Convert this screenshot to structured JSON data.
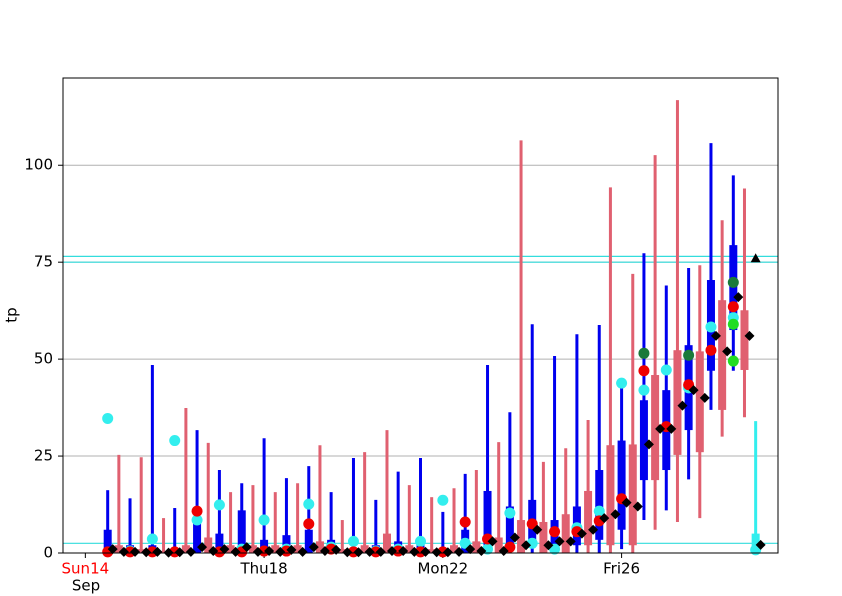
{
  "chart_data": {
    "type": "boxplot",
    "y_label": "tp",
    "x_sublabel": "Sep",
    "first_tick_color": "#ff0000",
    "xlim": [
      13.5,
      29.5
    ],
    "ylim": [
      0,
      122.5
    ],
    "xticks": [
      {
        "value": 14,
        "label": "Sun14"
      },
      {
        "value": 18,
        "label": "Thu18"
      },
      {
        "value": 22,
        "label": "Mon22"
      },
      {
        "value": 26,
        "label": "Fri26"
      }
    ],
    "yticks": [
      0,
      25,
      50,
      75,
      100
    ],
    "grid": true,
    "reference_lines": [
      {
        "value": 76.5,
        "color": "#33dddd"
      },
      {
        "value": 75,
        "color": "#33dddd"
      },
      {
        "value": 2.5,
        "color": "#33dddd"
      }
    ],
    "box_series": [
      {
        "color": "#0000ee",
        "x": [
          14.5,
          15,
          15.5,
          16,
          16.5,
          17,
          17.5,
          18,
          18.5,
          19,
          19.5,
          20,
          20.5,
          21,
          21.5,
          22,
          22.5,
          23,
          23.5,
          24,
          24.5,
          25,
          25.5,
          26,
          26.5,
          27,
          27.5,
          28,
          28.5
        ],
        "max": [
          16.2,
          14.1,
          48.5,
          11.6,
          31.7,
          21.4,
          18,
          29.6,
          19.3,
          22.4,
          15.7,
          24.5,
          13.7,
          21,
          24.5,
          10.6,
          20.4,
          48.5,
          36.3,
          59,
          50.8,
          56.4,
          58.8,
          43.6,
          77.3,
          69,
          73.5,
          105.7,
          97.4
        ],
        "q3": [
          6,
          2,
          2,
          1,
          8.5,
          5,
          11,
          3.4,
          4.6,
          6,
          3.4,
          1,
          2,
          3,
          2,
          1,
          6,
          16,
          12,
          13.7,
          8.5,
          12,
          21.4,
          29,
          39.4,
          42,
          53.6,
          70.4,
          79.4
        ],
        "q1": [
          0,
          0,
          0,
          0,
          0,
          0,
          0,
          0,
          0,
          0,
          0,
          0,
          0,
          0,
          0,
          0,
          0,
          0,
          1,
          2,
          0,
          2,
          3.4,
          6,
          18.8,
          21.4,
          31.7,
          47,
          57.5
        ],
        "min": [
          0,
          0,
          0,
          0,
          0,
          0,
          0,
          0,
          0,
          0,
          0,
          0,
          0,
          0,
          0,
          0,
          0,
          0,
          0,
          0,
          0,
          0,
          0,
          1,
          8.5,
          11,
          19,
          36.9,
          47
        ],
        "mean": [
          1,
          0.3,
          0.3,
          0.2,
          1.5,
          1,
          1.5,
          0.5,
          0.8,
          1.5,
          0.8,
          0.2,
          0.3,
          0.5,
          0.3,
          0.2,
          1,
          3,
          4,
          6,
          3,
          5,
          9,
          13,
          28,
          32,
          42,
          56,
          66
        ]
      },
      {
        "color": "#e06070",
        "x": [
          14.75,
          15.25,
          15.75,
          16.25,
          16.75,
          17.25,
          17.75,
          18.25,
          18.75,
          19.25,
          19.75,
          20.25,
          20.75,
          21.25,
          21.75,
          22.25,
          22.75,
          23.25,
          23.75,
          24.25,
          24.75,
          25.25,
          25.75,
          26.25,
          26.75,
          27.25,
          27.75,
          28.25,
          28.75
        ],
        "max": [
          25.3,
          24.7,
          9,
          37.4,
          28.4,
          15.7,
          17.5,
          15.7,
          18,
          27.8,
          8.5,
          26,
          31.7,
          17.5,
          14.4,
          16.7,
          21.4,
          28.6,
          106.4,
          23.5,
          27,
          34.3,
          94.3,
          72,
          102.6,
          116.8,
          74.2,
          85.8,
          94
        ],
        "q3": [
          2,
          1,
          0.5,
          2,
          4,
          2,
          2,
          2,
          2,
          3,
          1,
          2,
          5,
          2,
          1,
          2,
          3,
          4,
          8.5,
          8,
          10,
          16,
          27.8,
          28,
          45.9,
          52.3,
          52,
          65.2,
          62.6
        ],
        "q1": [
          0,
          0,
          0,
          0,
          0,
          0,
          0,
          0,
          0,
          0,
          0,
          0,
          0,
          0,
          0,
          0,
          0,
          0,
          0,
          0,
          0,
          2,
          2,
          2,
          18.8,
          25.3,
          26,
          36.9,
          47.2
        ],
        "min": [
          0,
          0,
          0,
          0,
          0,
          0,
          0,
          0,
          0,
          0,
          0,
          0,
          0,
          0,
          0,
          0,
          0,
          0,
          0,
          0,
          0,
          0,
          0,
          0,
          6,
          8,
          9,
          30,
          35
        ],
        "mean": [
          0.3,
          0.2,
          0.1,
          0.3,
          0.5,
          0.3,
          0.3,
          0.3,
          0.3,
          0.5,
          0.2,
          0.3,
          0.5,
          0.3,
          0.2,
          0.3,
          0.5,
          0.5,
          2,
          2,
          3,
          6,
          10,
          12,
          32,
          38,
          40,
          52,
          56
        ]
      },
      {
        "color": "#33eeee",
        "x": [
          29
        ],
        "max": [
          34
        ],
        "q3": [
          5
        ],
        "q1": [
          0
        ],
        "min": [
          0
        ],
        "mean": [
          2.1
        ]
      }
    ],
    "point_series": [
      {
        "color": "#33eeee",
        "shape": "circle",
        "x": [
          14.5,
          15,
          15.5,
          16,
          16.5,
          17,
          17.5,
          18,
          18.5,
          19,
          19.5,
          20,
          20.5,
          21,
          21.5,
          22,
          22.5,
          23,
          23.5,
          24,
          24.5,
          25,
          25.5,
          26,
          26.5,
          27,
          27.5,
          28,
          28.5,
          29
        ],
        "values": [
          34.7,
          0.5,
          3.6,
          29,
          8.5,
          12.4,
          1,
          8.5,
          1,
          12.6,
          1.5,
          3,
          0.5,
          1,
          3,
          13.6,
          2.5,
          1,
          10.3,
          2.5,
          1,
          6.5,
          10.8,
          43.8,
          42,
          47.2,
          42.6,
          58.3,
          60.7,
          0.8
        ]
      },
      {
        "color": "#ee0000",
        "shape": "circle",
        "x": [
          14.5,
          15,
          15.5,
          16,
          16.5,
          17,
          17.5,
          18,
          18.5,
          19,
          19.5,
          20,
          20.5,
          21,
          21.5,
          22,
          22.5,
          23,
          23.5,
          24,
          24.5,
          25,
          25.5,
          26,
          26.5,
          27,
          27.5,
          28,
          28.5
        ],
        "values": [
          0.3,
          0.3,
          0.3,
          0.3,
          10.8,
          0.3,
          0.3,
          0.5,
          0.5,
          7.5,
          1,
          0.3,
          0.3,
          0.5,
          0.3,
          0.3,
          8,
          3.6,
          1.5,
          7.5,
          5.5,
          5.5,
          8.3,
          14,
          47,
          32.6,
          43.4,
          52.3,
          63.5
        ]
      },
      {
        "color": "#1a7a3a",
        "shape": "circle",
        "x": [
          26.5,
          27.5,
          28.5
        ],
        "values": [
          51.5,
          51,
          69.8
        ]
      },
      {
        "color": "#22dd22",
        "shape": "circle",
        "x": [
          28.5,
          28.5
        ],
        "values": [
          49.5,
          59
        ]
      },
      {
        "color": "#000000",
        "shape": "triangle",
        "x": [
          29
        ],
        "values": [
          76
        ]
      }
    ]
  }
}
